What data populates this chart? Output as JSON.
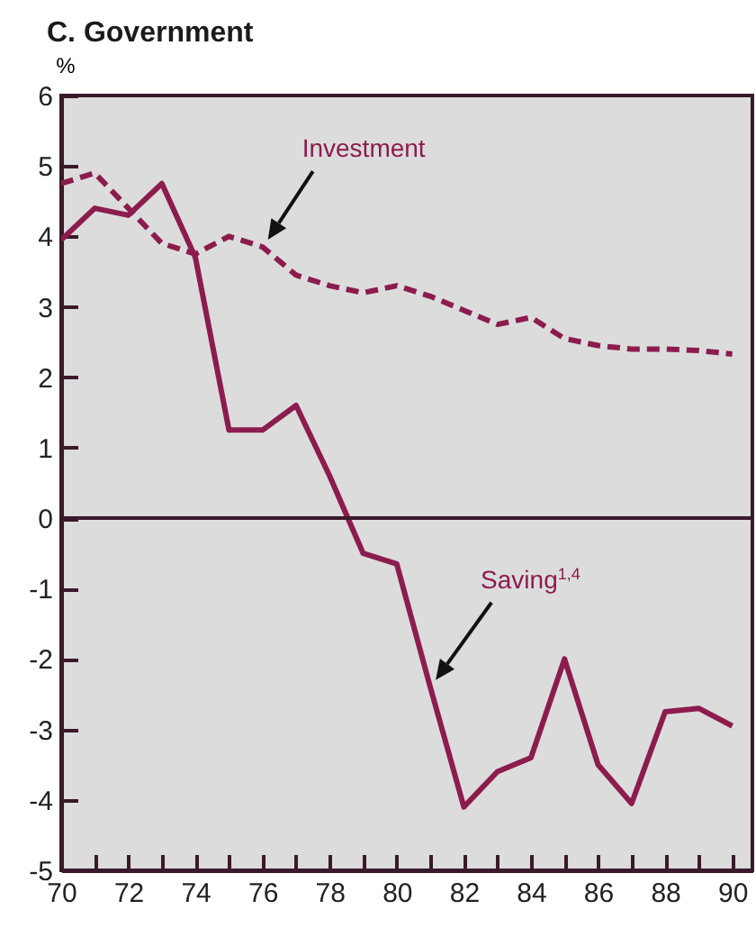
{
  "chart_data": {
    "type": "line",
    "title": "C. Government",
    "ylabel": "%",
    "x": [
      70,
      71,
      72,
      73,
      74,
      75,
      76,
      77,
      78,
      79,
      80,
      81,
      82,
      83,
      84,
      85,
      86,
      87,
      88,
      89,
      90
    ],
    "series": [
      {
        "name": "Investment",
        "color": "#8c1c4e",
        "line_style": "dashed",
        "values": [
          4.75,
          4.9,
          4.4,
          3.9,
          3.75,
          4.0,
          3.85,
          3.45,
          3.3,
          3.2,
          3.3,
          3.15,
          2.95,
          2.75,
          2.85,
          2.55,
          2.45,
          2.4,
          2.4,
          2.38,
          2.33
        ]
      },
      {
        "name": "Saving$^{1,4}$",
        "color": "#8c1c4e",
        "line_style": "solid",
        "values": [
          3.95,
          4.4,
          4.3,
          4.75,
          3.7,
          1.25,
          1.25,
          1.6,
          0.6,
          -0.5,
          -0.65,
          -2.4,
          -4.1,
          -3.6,
          -3.4,
          -2.0,
          -3.5,
          -4.05,
          -2.75,
          -2.7,
          -2.95
        ]
      }
    ],
    "xlim": [
      70,
      90.6
    ],
    "xticks": [
      70,
      {
        "value": 71,
        "label": null
      },
      72,
      {
        "value": 73,
        "label": null
      },
      74,
      {
        "value": 75,
        "label": null
      },
      76,
      {
        "value": 77,
        "label": null
      },
      78,
      {
        "value": 79,
        "label": null
      },
      80,
      {
        "value": 81,
        "label": null
      },
      82,
      {
        "value": 83,
        "label": null
      },
      84,
      {
        "value": 85,
        "label": null
      },
      86,
      {
        "value": 87,
        "label": null
      },
      88,
      {
        "value": 89,
        "label": null
      },
      90
    ],
    "ylim": [
      -5,
      6
    ],
    "yticks": [
      -5,
      -4,
      -3,
      -2,
      -1,
      0,
      1,
      2,
      3,
      4,
      5,
      6
    ],
    "ref_lines": [
      {
        "axis": "y",
        "value": 0,
        "color": "#3a1a2a"
      }
    ],
    "grid": false,
    "legend": false
  }
}
